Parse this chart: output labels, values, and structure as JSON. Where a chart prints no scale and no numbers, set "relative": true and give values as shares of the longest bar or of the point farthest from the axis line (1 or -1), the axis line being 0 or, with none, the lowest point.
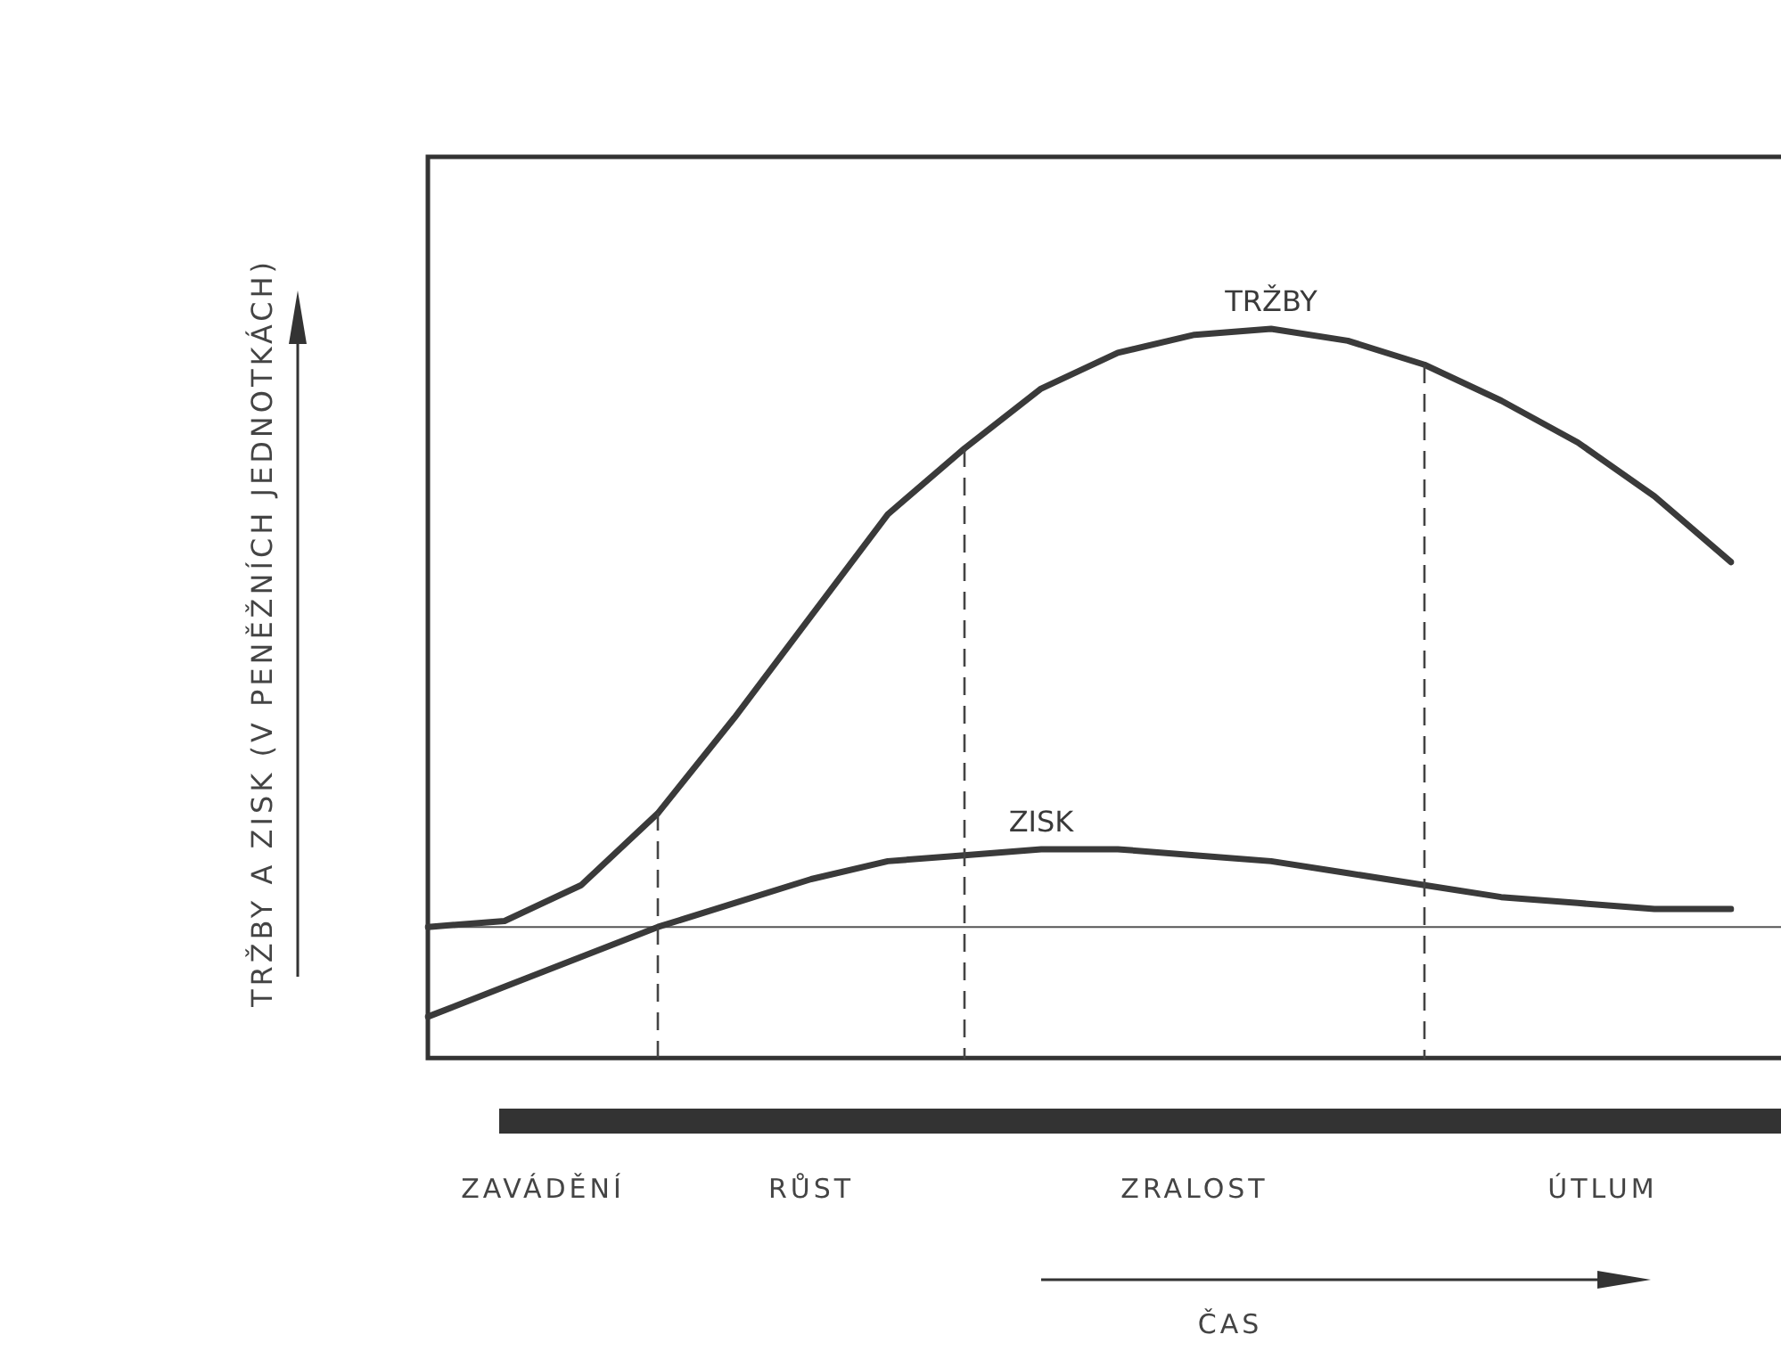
{
  "chart_data": {
    "type": "line",
    "relative": true,
    "legend": false,
    "marker": "none",
    "line_style": "solid",
    "categories": [
      null,
      null,
      null,
      null,
      null,
      null,
      null,
      null,
      null,
      null,
      null,
      null,
      null,
      null,
      null,
      null,
      null,
      null
    ],
    "series": [
      {
        "name": "TRŽBY",
        "color": "#3a3a3a",
        "values": [
          0,
          0.01,
          0.07,
          0.19,
          0.35,
          0.52,
          0.69,
          0.8,
          0.9,
          0.96,
          0.99,
          1,
          0.98,
          0.94,
          0.88,
          0.81,
          0.72,
          0.61
        ]
      },
      {
        "name": "ZISK",
        "color": "#3a3a3a",
        "values": [
          -0.15,
          -0.1,
          -0.05,
          0,
          0.04,
          0.08,
          0.11,
          0.12,
          0.13,
          0.13,
          0.12,
          0.11,
          0.09,
          0.07,
          0.05,
          0.04,
          0.03,
          0.03
        ]
      }
    ],
    "annotations": [
      "ZAVÁDĚNÍ",
      "RŮST",
      "ZRALOST",
      "ÚTLUM",
      "TRŽBY A ZISK (V PENĚŽNÍCH JEDNOTKÁCH)",
      "ČAS"
    ]
  }
}
